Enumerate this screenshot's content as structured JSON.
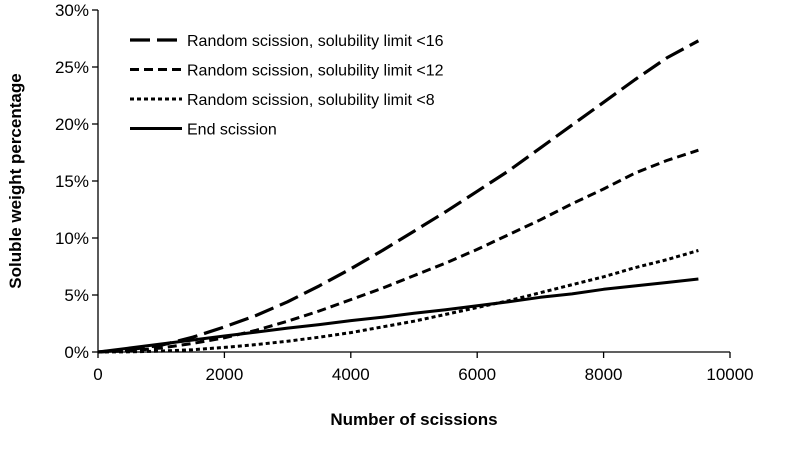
{
  "chart_data": {
    "type": "line",
    "title": "",
    "xlabel": "Number of scissions",
    "ylabel": "Soluble weight percentage",
    "xlim": [
      0,
      10000
    ],
    "ylim": [
      0,
      30
    ],
    "x_ticks": [
      0,
      2000,
      4000,
      6000,
      8000,
      10000
    ],
    "x_tick_labels": [
      "0",
      "2000",
      "4000",
      "6000",
      "8000",
      "10000"
    ],
    "y_ticks": [
      0,
      5,
      10,
      15,
      20,
      25,
      30
    ],
    "y_tick_labels": [
      "0%",
      "5%",
      "10%",
      "15%",
      "20%",
      "25%",
      "30%"
    ],
    "grid": false,
    "legend_position": "top-left",
    "x": [
      0,
      500,
      1000,
      1500,
      2000,
      2500,
      3000,
      3500,
      4000,
      4500,
      5000,
      5500,
      6000,
      6500,
      7000,
      7500,
      8000,
      8500,
      9000,
      9500
    ],
    "series": [
      {
        "name": "Random scission, solubility limit <16",
        "style": "long-dash",
        "values": [
          0,
          0.2,
          0.6,
          1.3,
          2.2,
          3.2,
          4.4,
          5.8,
          7.3,
          8.9,
          10.6,
          12.3,
          14.1,
          15.9,
          17.9,
          19.9,
          21.9,
          23.9,
          25.8,
          27.3
        ]
      },
      {
        "name": "Random scission, solubility limit <12",
        "style": "dash",
        "values": [
          0,
          0.1,
          0.35,
          0.75,
          1.25,
          1.9,
          2.7,
          3.6,
          4.6,
          5.6,
          6.7,
          7.8,
          9.0,
          10.3,
          11.6,
          13.0,
          14.3,
          15.7,
          16.8,
          17.7
        ]
      },
      {
        "name": "Random scission, solubility limit <8",
        "style": "short-dash",
        "values": [
          0,
          0.02,
          0.08,
          0.2,
          0.4,
          0.65,
          0.95,
          1.3,
          1.7,
          2.2,
          2.7,
          3.3,
          3.9,
          4.5,
          5.2,
          5.9,
          6.6,
          7.4,
          8.1,
          8.9
        ]
      },
      {
        "name": "End scission",
        "style": "solid",
        "values": [
          0,
          0.35,
          0.7,
          1.05,
          1.4,
          1.75,
          2.1,
          2.4,
          2.75,
          3.05,
          3.4,
          3.7,
          4.05,
          4.4,
          4.8,
          5.1,
          5.5,
          5.8,
          6.1,
          6.4
        ]
      }
    ]
  }
}
